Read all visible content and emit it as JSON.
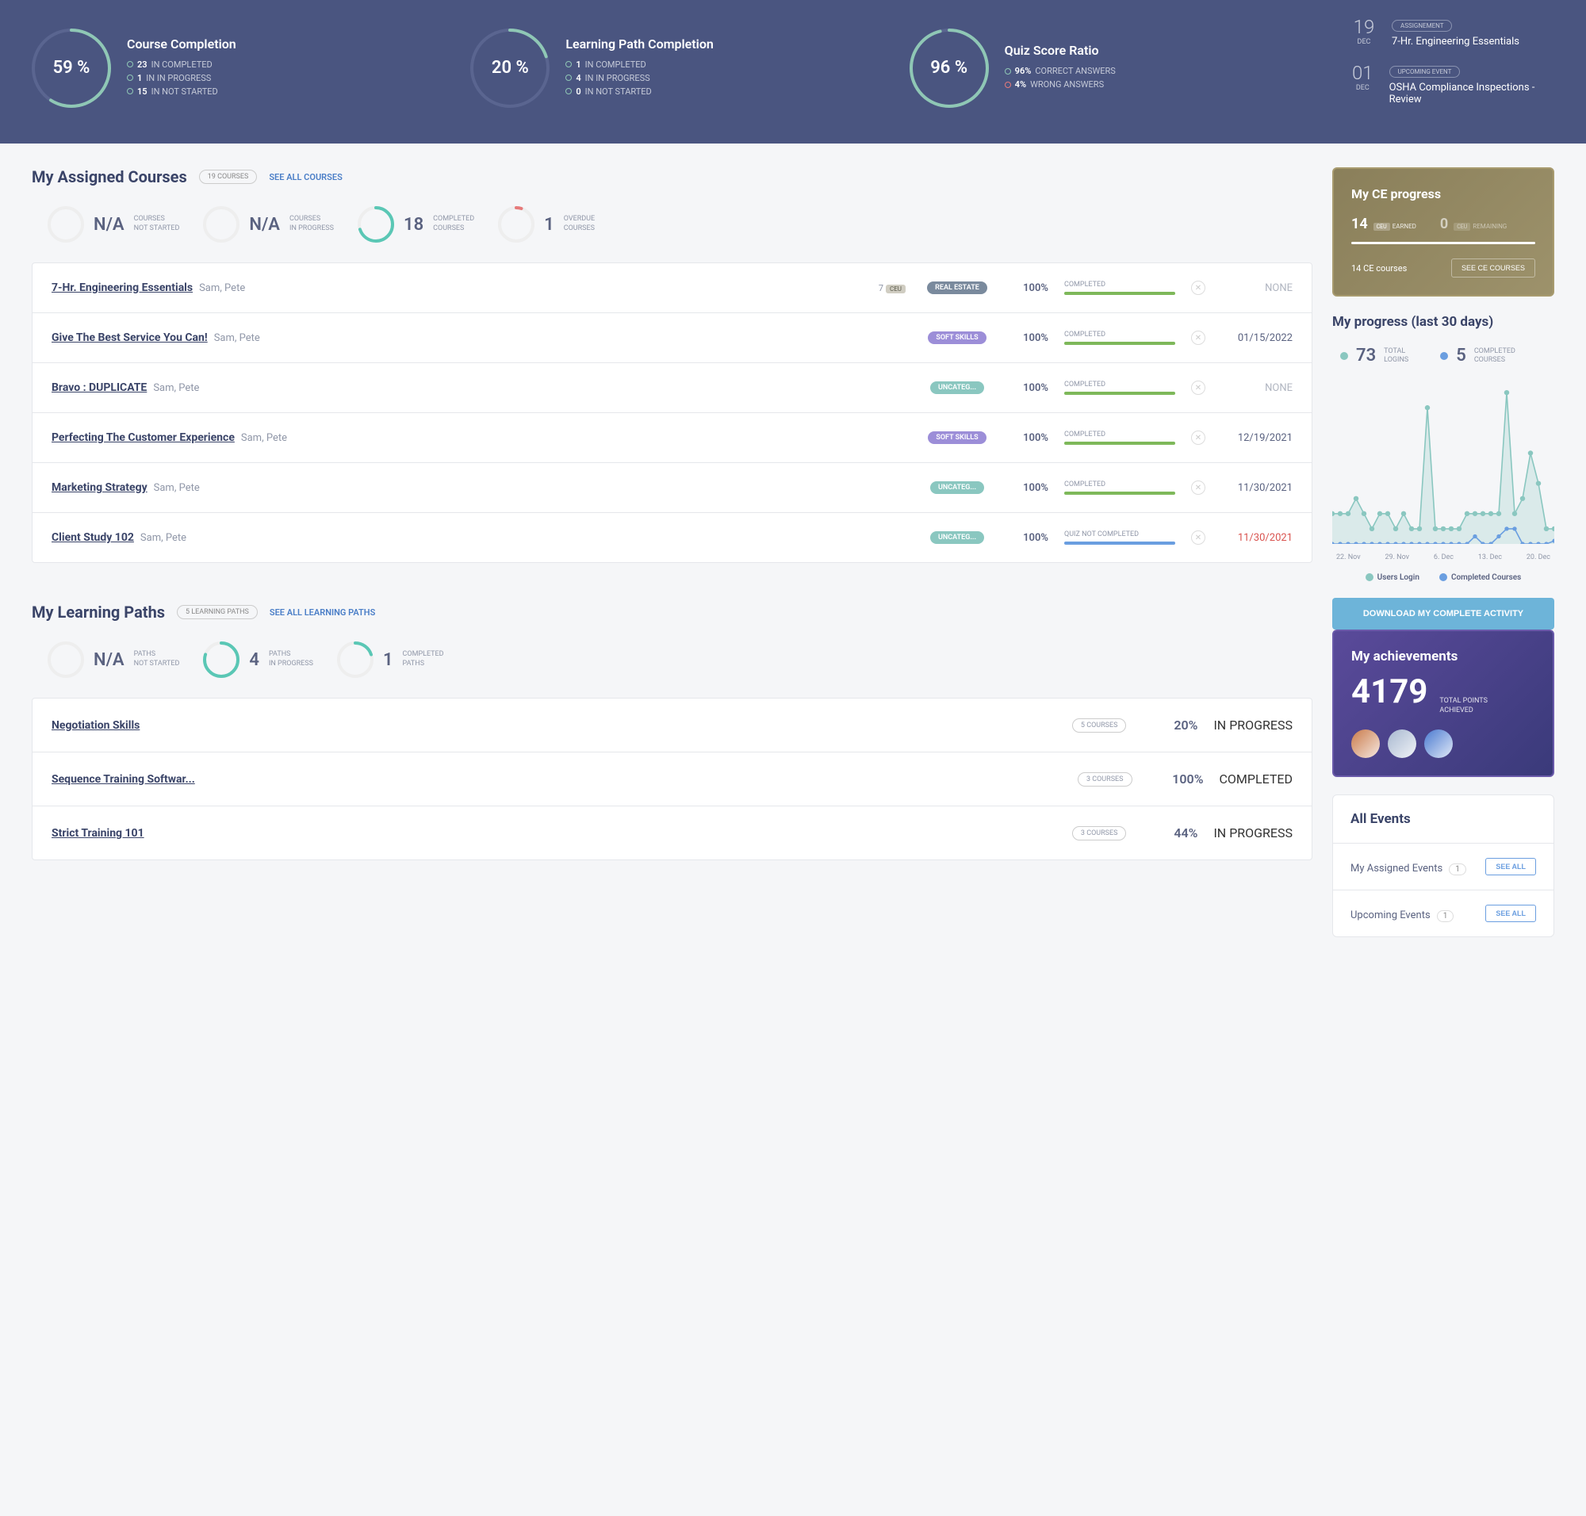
{
  "hero": {
    "stats": [
      {
        "title": "Course Completion",
        "pct": "59 %",
        "value": 59,
        "lines": [
          {
            "num": "23",
            "txt": "IN COMPLETED",
            "red": false
          },
          {
            "num": "1",
            "txt": "IN IN PROGRESS",
            "red": false
          },
          {
            "num": "15",
            "txt": "IN NOT STARTED",
            "red": false
          }
        ]
      },
      {
        "title": "Learning Path Completion",
        "pct": "20 %",
        "value": 20,
        "lines": [
          {
            "num": "1",
            "txt": "IN COMPLETED",
            "red": false
          },
          {
            "num": "4",
            "txt": "IN IN PROGRESS",
            "red": false
          },
          {
            "num": "0",
            "txt": "IN NOT STARTED",
            "red": false
          }
        ]
      },
      {
        "title": "Quiz Score Ratio",
        "pct": "96 %",
        "value": 96,
        "lines": [
          {
            "num": "96%",
            "txt": "CORRECT ANSWERS",
            "red": false
          },
          {
            "num": "4%",
            "txt": "WRONG ANSWERS",
            "red": true
          }
        ]
      }
    ],
    "events": [
      {
        "day": "19",
        "month": "DEC",
        "tag": "ASSIGNEMENT",
        "title": "7-Hr. Engineering Essentials"
      },
      {
        "day": "01",
        "month": "DEC",
        "tag": "UPCOMING EVENT",
        "title": "OSHA Compliance Inspections - Review"
      }
    ],
    "ring_color": "#8fc7b5",
    "ring_bg": "#5a6590"
  },
  "courses": {
    "title": "My Assigned Courses",
    "count_pill": "19 COURSES",
    "see_all": "SEE ALL COURSES",
    "stats": [
      {
        "val": "N/A",
        "lbl": "COURSES NOT STARTED",
        "type": "plain"
      },
      {
        "val": "N/A",
        "lbl": "COURSES IN PROGRESS",
        "type": "plain"
      },
      {
        "val": "18",
        "lbl": "COMPLETED COURSES",
        "type": "teal",
        "pct": 70
      },
      {
        "val": "1",
        "lbl": "OVERDUE COURSES",
        "type": "red"
      }
    ],
    "rows": [
      {
        "name": "7-Hr. Engineering Essentials",
        "author": "Sam, Pete",
        "ceu": "7",
        "tag": "REAL ESTATE",
        "tag_color": "#7a8a9d",
        "pct": "100%",
        "status": "COMPLETED",
        "bar": "green",
        "due": "NONE",
        "due_class": "none"
      },
      {
        "name": "Give The Best Service You Can!",
        "author": "Sam, Pete",
        "ceu": "",
        "tag": "SOFT SKILLS",
        "tag_color": "#9c8ed8",
        "pct": "100%",
        "status": "COMPLETED",
        "bar": "green",
        "due": "01/15/2022",
        "due_class": ""
      },
      {
        "name": "Bravo : DUPLICATE",
        "author": "Sam, Pete",
        "ceu": "",
        "tag": "UNCATEG...",
        "tag_color": "#8ac7c0",
        "pct": "100%",
        "status": "COMPLETED",
        "bar": "green",
        "due": "NONE",
        "due_class": "none"
      },
      {
        "name": "Perfecting The Customer Experience",
        "author": "Sam, Pete",
        "ceu": "",
        "tag": "SOFT SKILLS",
        "tag_color": "#9c8ed8",
        "pct": "100%",
        "status": "COMPLETED",
        "bar": "green",
        "due": "12/19/2021",
        "due_class": ""
      },
      {
        "name": "Marketing Strategy",
        "author": "Sam, Pete",
        "ceu": "",
        "tag": "UNCATEG...",
        "tag_color": "#8ac7c0",
        "pct": "100%",
        "status": "COMPLETED",
        "bar": "green",
        "due": "11/30/2021",
        "due_class": ""
      },
      {
        "name": "Client Study 102",
        "author": "Sam, Pete",
        "ceu": "",
        "tag": "UNCATEG...",
        "tag_color": "#8ac7c0",
        "pct": "100%",
        "status": "QUIZ NOT COMPLETED",
        "bar": "blue",
        "due": "11/30/2021",
        "due_class": "red"
      }
    ]
  },
  "paths": {
    "title": "My Learning Paths",
    "count_pill": "5 LEARNING PATHS",
    "see_all": "SEE ALL LEARNING PATHS",
    "stats": [
      {
        "val": "N/A",
        "lbl": "PATHS NOT STARTED",
        "type": "plain"
      },
      {
        "val": "4",
        "lbl": "PATHS IN PROGRESS",
        "type": "teal",
        "pct": 80
      },
      {
        "val": "1",
        "lbl": "COMPLETED PATHS",
        "type": "teal",
        "pct": 20
      }
    ],
    "rows": [
      {
        "name": "Negotiation Skills",
        "cnt": "5 COURSES",
        "pct": "20%",
        "status": "IN PROGRESS",
        "bar": "teal",
        "bar_w": "20%"
      },
      {
        "name": "Sequence Training Softwar...",
        "cnt": "3 COURSES",
        "pct": "100%",
        "status": "COMPLETED",
        "bar": "green",
        "bar_w": "100%"
      },
      {
        "name": "Strict Training 101",
        "cnt": "3 COURSES",
        "pct": "44%",
        "status": "IN PROGRESS",
        "bar": "teal",
        "bar_w": "44%"
      }
    ]
  },
  "ce": {
    "title": "My CE progress",
    "earned": "14",
    "earned_lbl": "EARNED",
    "remaining": "0",
    "remaining_lbl": "REMAINING",
    "footer": "14 CE courses",
    "btn": "SEE CE COURSES"
  },
  "progress": {
    "title": "My progress (last 30 days)",
    "logins": "73",
    "logins_lbl": "TOTAL LOGINS",
    "completed": "5",
    "completed_lbl": "COMPLETED COURSES",
    "x_labels": [
      "22. Nov",
      "29. Nov",
      "6. Dec",
      "13. Dec",
      "20. Dec"
    ],
    "legend": [
      {
        "color": "#8ac7c0",
        "label": "Users Login"
      },
      {
        "color": "#6a9ee0",
        "label": "Completed Courses"
      }
    ],
    "series_login": [
      2,
      2,
      2,
      3,
      2,
      1,
      2,
      2,
      1,
      2,
      1,
      1,
      9,
      1,
      1,
      1,
      1,
      2,
      2,
      2,
      2,
      2,
      10,
      2,
      3,
      6,
      4,
      1,
      1
    ],
    "series_completed": [
      0,
      0,
      0,
      0,
      0,
      0,
      0,
      0,
      0,
      0,
      0,
      0,
      0,
      0,
      0,
      0,
      0,
      0,
      0.5,
      0,
      0,
      0.5,
      1,
      1,
      0,
      0,
      0,
      0,
      0.2
    ],
    "ymax": 11,
    "login_color": "#8ac7c0",
    "completed_color": "#6a9ee0",
    "area_opacity": 0.25,
    "download_btn": "DOWNLOAD MY COMPLETE ACTIVITY"
  },
  "ach": {
    "title": "My achievements",
    "points": "4179",
    "lbl": "TOTAL POINTS ACHIEVED",
    "badges": [
      "#c97a4a",
      "#a8b8d0",
      "#4a7ad0"
    ]
  },
  "events_card": {
    "title": "All Events",
    "rows": [
      {
        "label": "My Assigned Events",
        "count": "1",
        "btn": "SEE ALL"
      },
      {
        "label": "Upcoming Events",
        "count": "1",
        "btn": "SEE ALL"
      }
    ]
  }
}
